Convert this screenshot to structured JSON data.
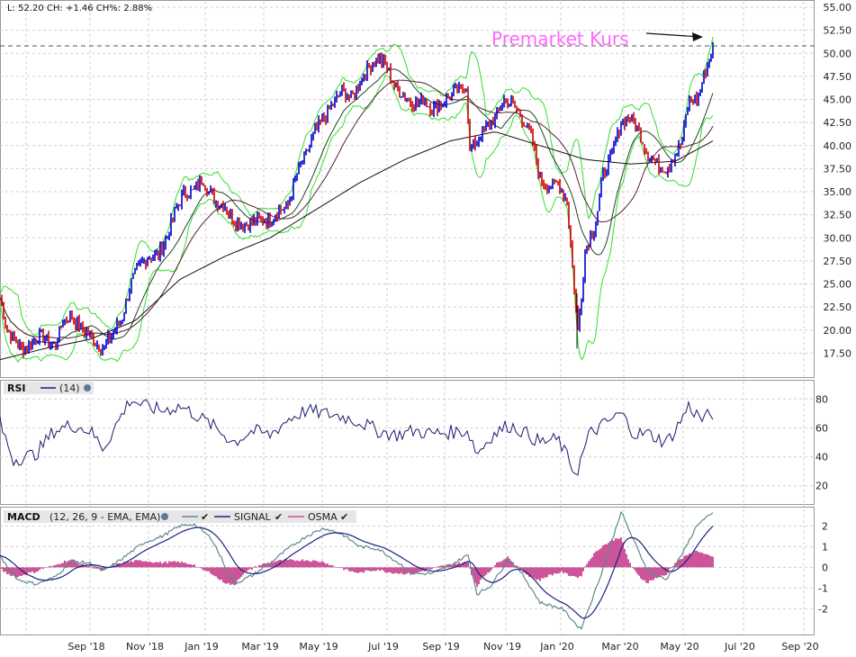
{
  "ohlc_text": "L: 52.20 CH: +1.46 CH%: 2.88%",
  "annotation": "Premarket Kurs",
  "colors": {
    "up": "#0000cc",
    "down": "#cc0000",
    "bollinger": "#33dd33",
    "sma_short": "#224422",
    "sma_mid": "#552233",
    "sma_long": "#111111",
    "rsi": "#1a1a6e",
    "macd": "#5d8a8a",
    "signal": "#1a237e",
    "osma": "#cc5599",
    "annotation": "#ff66ff"
  },
  "x_labels": [
    "Sep '18",
    "Nov '18",
    "Jan '19",
    "Mar '19",
    "May '19",
    "Jul '19",
    "Sep '19",
    "Nov '19",
    "Jan '20",
    "Mar '20",
    "May '20",
    "Jul '20",
    "Sep '20"
  ],
  "price_panel": {
    "ylim": [
      15,
      55
    ],
    "ticks": [
      "17.50",
      "20.00",
      "22.50",
      "25.00",
      "27.50",
      "30.00",
      "32.50",
      "35.00",
      "37.50",
      "40.00",
      "42.50",
      "45.00",
      "47.50",
      "50.00",
      "52.50",
      "55.00"
    ],
    "last_line": 50.8
  },
  "rsi_panel": {
    "label": "RSI",
    "param": "(14)",
    "ylim": [
      8,
      92
    ],
    "ticks": [
      "20",
      "40",
      "60",
      "80"
    ]
  },
  "macd_panel": {
    "label": "MACD",
    "param": "(12, 26, 9 - EMA, EMA)",
    "signal_label": "SIGNAL",
    "osma_label": "OSMA",
    "ylim": [
      -3.2,
      2.8
    ],
    "ticks": [
      "-2",
      "-1",
      "0",
      "1",
      "2"
    ]
  },
  "chart_data": {
    "type": "line",
    "title": "",
    "x_labels": [
      "Sep '18",
      "Nov '18",
      "Jan '19",
      "Mar '19",
      "May '19",
      "Jul '19",
      "Sep '19",
      "Nov '19",
      "Jan '20",
      "Mar '20",
      "May '20",
      "Jul '20",
      "Sep '20"
    ],
    "price_anchors": [
      [
        0,
        23.5
      ],
      [
        8,
        20
      ],
      [
        15,
        19
      ],
      [
        25,
        18
      ],
      [
        35,
        18.5
      ],
      [
        45,
        19.5
      ],
      [
        55,
        18.5
      ],
      [
        62,
        18.5
      ],
      [
        70,
        21
      ],
      [
        78,
        21.5
      ],
      [
        84,
        21
      ],
      [
        92,
        20
      ],
      [
        100,
        19.5
      ],
      [
        108,
        18.5
      ],
      [
        116,
        18
      ],
      [
        120,
        19
      ],
      [
        125,
        19.5
      ],
      [
        130,
        20.5
      ],
      [
        135,
        21
      ],
      [
        145,
        25
      ],
      [
        155,
        27
      ],
      [
        165,
        28
      ],
      [
        175,
        28
      ],
      [
        185,
        30
      ],
      [
        195,
        33
      ],
      [
        205,
        35
      ],
      [
        215,
        35
      ],
      [
        225,
        36.5
      ],
      [
        232,
        35
      ],
      [
        240,
        34
      ],
      [
        250,
        33.5
      ],
      [
        258,
        32
      ],
      [
        265,
        31.5
      ],
      [
        275,
        31.5
      ],
      [
        285,
        32
      ],
      [
        300,
        32
      ],
      [
        310,
        33
      ],
      [
        320,
        33.5
      ],
      [
        330,
        37
      ],
      [
        340,
        39
      ],
      [
        350,
        41.5
      ],
      [
        360,
        43
      ],
      [
        370,
        44.5
      ],
      [
        380,
        46
      ],
      [
        390,
        45
      ],
      [
        400,
        47
      ],
      [
        410,
        48.5
      ],
      [
        420,
        49.5
      ],
      [
        430,
        48.5
      ],
      [
        440,
        46
      ],
      [
        450,
        45.5
      ],
      [
        460,
        44.5
      ],
      [
        470,
        45
      ],
      [
        480,
        44
      ],
      [
        490,
        44.5
      ],
      [
        500,
        45.5
      ],
      [
        510,
        46
      ],
      [
        518,
        46.5
      ],
      [
        522,
        39.5
      ],
      [
        530,
        40.5
      ],
      [
        540,
        42
      ],
      [
        550,
        43
      ],
      [
        560,
        45
      ],
      [
        570,
        44.5
      ],
      [
        580,
        43
      ],
      [
        590,
        41
      ],
      [
        600,
        36.5
      ],
      [
        610,
        35.5
      ],
      [
        620,
        36
      ],
      [
        630,
        34
      ],
      [
        638,
        24.5
      ],
      [
        642,
        20
      ],
      [
        646,
        24
      ],
      [
        650,
        28.5
      ],
      [
        655,
        30
      ],
      [
        660,
        31
      ],
      [
        665,
        33.5
      ],
      [
        670,
        37
      ],
      [
        680,
        39
      ],
      [
        690,
        42.5
      ],
      [
        700,
        43
      ],
      [
        710,
        41.5
      ],
      [
        720,
        39
      ],
      [
        730,
        38
      ],
      [
        740,
        37.5
      ],
      [
        750,
        39
      ],
      [
        758,
        40.5
      ],
      [
        765,
        45
      ],
      [
        775,
        45
      ],
      [
        782,
        47.5
      ],
      [
        788,
        49.5
      ],
      [
        792,
        50.5
      ]
    ],
    "sma_long_anchors": [
      [
        0,
        16.8
      ],
      [
        50,
        18
      ],
      [
        100,
        19
      ],
      [
        150,
        21
      ],
      [
        200,
        25.5
      ],
      [
        250,
        28
      ],
      [
        300,
        30
      ],
      [
        350,
        33
      ],
      [
        400,
        36
      ],
      [
        450,
        38.5
      ],
      [
        500,
        40.5
      ],
      [
        550,
        41.5
      ],
      [
        600,
        40
      ],
      [
        650,
        38.5
      ],
      [
        700,
        38
      ],
      [
        750,
        38.3
      ],
      [
        792,
        40.5
      ]
    ],
    "rsi_anchors": [
      [
        0,
        63
      ],
      [
        15,
        38
      ],
      [
        40,
        42
      ],
      [
        60,
        58
      ],
      [
        80,
        62
      ],
      [
        100,
        58
      ],
      [
        115,
        46
      ],
      [
        130,
        63
      ],
      [
        145,
        80
      ],
      [
        160,
        75
      ],
      [
        180,
        72
      ],
      [
        200,
        75
      ],
      [
        215,
        70
      ],
      [
        235,
        62
      ],
      [
        260,
        50
      ],
      [
        280,
        58
      ],
      [
        300,
        55
      ],
      [
        320,
        66
      ],
      [
        340,
        72
      ],
      [
        360,
        70
      ],
      [
        380,
        68
      ],
      [
        400,
        64
      ],
      [
        420,
        58
      ],
      [
        440,
        55
      ],
      [
        460,
        58
      ],
      [
        480,
        56
      ],
      [
        500,
        57
      ],
      [
        520,
        58
      ],
      [
        530,
        42
      ],
      [
        545,
        54
      ],
      [
        565,
        62
      ],
      [
        580,
        58
      ],
      [
        600,
        50
      ],
      [
        620,
        52
      ],
      [
        640,
        28
      ],
      [
        655,
        56
      ],
      [
        675,
        64
      ],
      [
        690,
        70
      ],
      [
        705,
        56
      ],
      [
        720,
        56
      ],
      [
        740,
        50
      ],
      [
        750,
        58
      ],
      [
        765,
        75
      ],
      [
        780,
        66
      ],
      [
        792,
        70
      ]
    ],
    "macd_anchors": [
      [
        0,
        0.5
      ],
      [
        20,
        -0.6
      ],
      [
        40,
        -0.8
      ],
      [
        60,
        -0.5
      ],
      [
        80,
        0.3
      ],
      [
        100,
        0.2
      ],
      [
        115,
        -0.2
      ],
      [
        135,
        0.4
      ],
      [
        160,
        1.2
      ],
      [
        180,
        1.5
      ],
      [
        200,
        2.0
      ],
      [
        215,
        2.1
      ],
      [
        235,
        1.4
      ],
      [
        260,
        -0.8
      ],
      [
        280,
        -0.4
      ],
      [
        300,
        0.2
      ],
      [
        320,
        0.9
      ],
      [
        340,
        1.5
      ],
      [
        360,
        1.9
      ],
      [
        380,
        1.6
      ],
      [
        400,
        1.0
      ],
      [
        420,
        0.9
      ],
      [
        440,
        0.3
      ],
      [
        460,
        -0.3
      ],
      [
        480,
        -0.3
      ],
      [
        500,
        0.1
      ],
      [
        520,
        0.6
      ],
      [
        530,
        -1.3
      ],
      [
        545,
        -0.9
      ],
      [
        565,
        0.4
      ],
      [
        580,
        -0.3
      ],
      [
        600,
        -1.7
      ],
      [
        625,
        -2.0
      ],
      [
        645,
        -3.0
      ],
      [
        660,
        -1.3
      ],
      [
        675,
        0.6
      ],
      [
        690,
        2.7
      ],
      [
        705,
        1.2
      ],
      [
        720,
        -0.2
      ],
      [
        740,
        -0.6
      ],
      [
        760,
        0.8
      ],
      [
        775,
        2.1
      ],
      [
        792,
        2.6
      ]
    ],
    "ylim": [
      15,
      55
    ]
  }
}
